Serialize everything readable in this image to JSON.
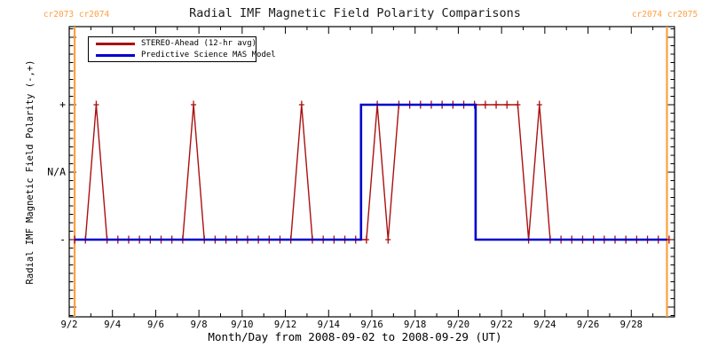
{
  "title": "Radial IMF Magnetic Field Polarity Comparisons",
  "carrington_labels": {
    "left": "cr2073 cr2074",
    "right": "cr2074 cr2075"
  },
  "axes": {
    "x_title": "Month/Day from 2008-09-02 to 2008-09-29 (UT)",
    "y_title": "Radial IMF Magnetic Field Polarity (-,+)",
    "x_tick_labels": [
      "9/2",
      "9/4",
      "9/6",
      "9/8",
      "9/10",
      "9/12",
      "9/14",
      "9/16",
      "9/18",
      "9/20",
      "9/22",
      "9/24",
      "9/26",
      "9/28"
    ],
    "y_tick_labels": [
      "+",
      "N/A",
      "-"
    ]
  },
  "legend": {
    "entries": [
      {
        "label": "STEREO-Ahead (12-hr avg)",
        "color": "#aa1111"
      },
      {
        "label": "Predictive Science MAS Model",
        "color": "#0000cc"
      }
    ]
  },
  "colors": {
    "stereo": "#aa1111",
    "model": "#0000cc",
    "carrington": "#ffa040",
    "axis": "#000000",
    "background": "#ffffff"
  },
  "chart_data": {
    "type": "line",
    "title": "Radial IMF Magnetic Field Polarity Comparisons",
    "xlabel": "Month/Day from 2008-09-02 to 2008-09-29 (UT)",
    "ylabel": "Radial IMF Magnetic Field Polarity (-,+)",
    "x_units": "day of September 2008 (UT)",
    "x_range_days": [
      2,
      30
    ],
    "y_categories": [
      {
        "value": 1,
        "label": "+"
      },
      {
        "value": 0,
        "label": "N/A"
      },
      {
        "value": -1,
        "label": "-"
      }
    ],
    "carrington_line_days": [
      2.25,
      29.65
    ],
    "series": [
      {
        "name": "STEREO-Ahead (12-hr avg)",
        "color": "#aa1111",
        "marker": "plus",
        "sampling": "12-hour averages",
        "t_start": 2.25,
        "t_end": 29.75,
        "step_days": 0.5,
        "positive_value": 1,
        "negative_value": -1,
        "positive_times": [
          3.25,
          7.75,
          12.75,
          16.25,
          17.25,
          17.75,
          18.25,
          18.75,
          19.25,
          19.75,
          20.25,
          20.75,
          21.25,
          21.75,
          22.25,
          22.75,
          23.75
        ]
      },
      {
        "name": "Predictive Science MAS Model",
        "color": "#0000cc",
        "style": "step",
        "t_end": 29.65,
        "transitions": [
          {
            "t": 2.25,
            "v": -1
          },
          {
            "t": 15.5,
            "v": 1
          },
          {
            "t": 20.8,
            "v": -1
          }
        ]
      }
    ]
  }
}
